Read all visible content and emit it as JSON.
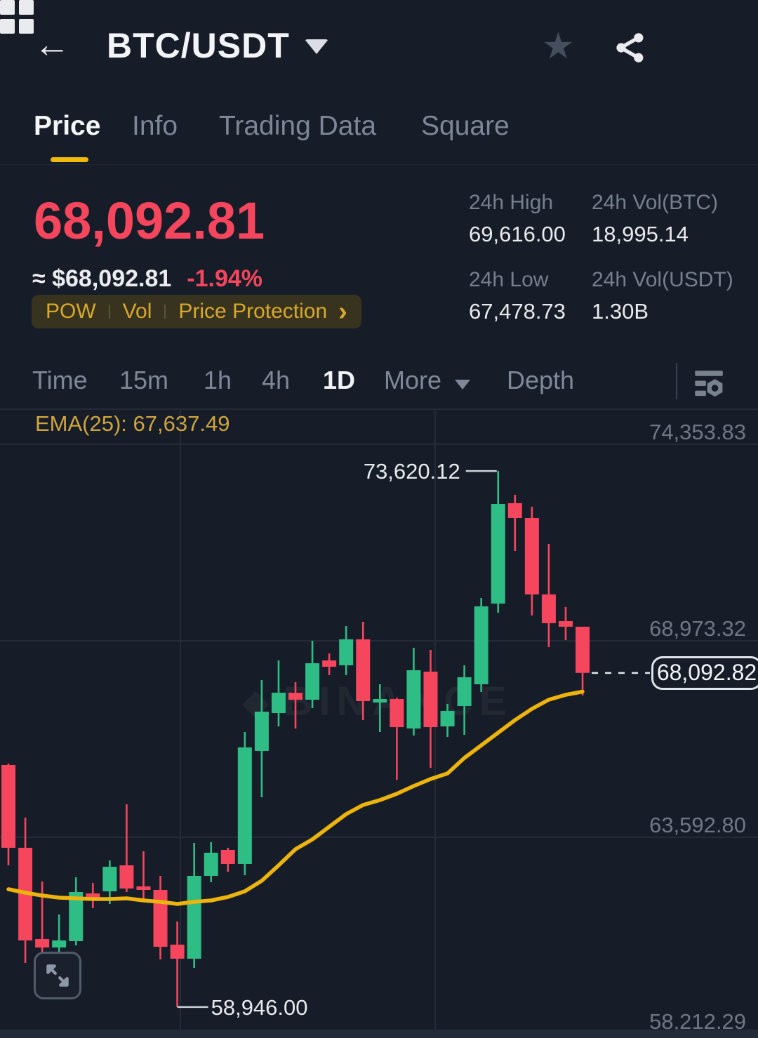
{
  "header": {
    "title": "BTC/USDT",
    "back_glyph": "←",
    "star_glyph": "★"
  },
  "tabs": [
    {
      "label": "Price",
      "active": true
    },
    {
      "label": "Info",
      "active": false
    },
    {
      "label": "Trading Data",
      "active": false
    },
    {
      "label": "Square",
      "active": false
    }
  ],
  "ticker": {
    "last_price": "68,092.81",
    "fiat_equiv": "≈ $68,092.81",
    "change_pct": "-1.94%",
    "tags": [
      "POW",
      "Vol",
      "Price Protection"
    ],
    "tags_chevron": "›"
  },
  "stats": [
    {
      "label": "24h High",
      "value": "69,616.00"
    },
    {
      "label": "24h Vol(BTC)",
      "value": "18,995.14"
    },
    {
      "label": "24h Low",
      "value": "67,478.73"
    },
    {
      "label": "24h Vol(USDT)",
      "value": "1.30B"
    }
  ],
  "intervals": {
    "items": [
      "Time",
      "15m",
      "1h",
      "4h",
      "1D",
      "More",
      "Depth"
    ],
    "selected": "1D"
  },
  "chart_data": {
    "type": "candlestick",
    "pair": "BTC/USDT",
    "timeframe": "1D",
    "ema_label": "EMA(25): 67,637.49",
    "ema_period": 25,
    "ema_value": 67637.49,
    "watermark": "BINANCE",
    "watermark_glyph": "◆",
    "axis": {
      "price_ticks": [
        74353.83,
        68973.32,
        63592.8,
        58212.29
      ],
      "tick_labels": [
        "74,353.83",
        "68,973.32",
        "63,592.80",
        "58,212.29"
      ],
      "grid_x": [
        257,
        620
      ]
    },
    "candles": [
      [
        65572,
        65611,
        62824,
        63305
      ],
      [
        63305,
        64131,
        60153,
        60768
      ],
      [
        60806,
        62382,
        60380,
        60576
      ],
      [
        60576,
        61479,
        60345,
        60768
      ],
      [
        60749,
        62498,
        60633,
        62094
      ],
      [
        62055,
        62344,
        61652,
        61863
      ],
      [
        62113,
        62959,
        61767,
        62786
      ],
      [
        62824,
        64496,
        62094,
        62190
      ],
      [
        62248,
        63209,
        61844,
        62152
      ],
      [
        62152,
        62536,
        60249,
        60595
      ],
      [
        60653,
        61287,
        58946,
        60268
      ],
      [
        60268,
        63439,
        60018,
        62536
      ],
      [
        62536,
        63458,
        62363,
        63170
      ],
      [
        63247,
        63304,
        62651,
        62863
      ],
      [
        62863,
        66475,
        62555,
        66053
      ],
      [
        65957,
        67897,
        64688,
        67032
      ],
      [
        66994,
        68435,
        66629,
        67551
      ],
      [
        67551,
        67840,
        66571,
        67359
      ],
      [
        67359,
        68973,
        67128,
        68358
      ],
      [
        68435,
        68627,
        68032,
        68262
      ],
      [
        68301,
        69377,
        68032,
        69012
      ],
      [
        69012,
        69492,
        66802,
        67321
      ],
      [
        67282,
        67782,
        66475,
        67378
      ],
      [
        67378,
        67417,
        65168,
        66609
      ],
      [
        66571,
        68781,
        66379,
        68166
      ],
      [
        68128,
        68723,
        65494,
        66609
      ],
      [
        66629,
        67244,
        66341,
        67052
      ],
      [
        67186,
        68301,
        66398,
        67974
      ],
      [
        67782,
        70146,
        67570,
        69915
      ],
      [
        69992,
        73620.12,
        69742,
        72720
      ],
      [
        72740,
        72970,
        71433,
        72336
      ],
      [
        72336,
        72643,
        69665,
        70242
      ],
      [
        70242,
        71625,
        68800,
        69454
      ],
      [
        69512,
        69896,
        68993,
        69358
      ],
      [
        69358,
        69358,
        67478.73,
        68092.82
      ]
    ],
    "ema": [
      62171,
      62075,
      61998,
      61940,
      61921,
      61902,
      61902,
      61921,
      61863,
      61825,
      61767,
      61825,
      61863,
      61959,
      62113,
      62401,
      62824,
      63266,
      63535,
      63881,
      64227,
      64477,
      64611,
      64784,
      64995,
      65187,
      65341,
      65764,
      66110,
      66456,
      66802,
      67109,
      67359,
      67494,
      67580
    ],
    "annotations": {
      "high": {
        "index": 29,
        "price": 73620.12,
        "label": "73,620.12"
      },
      "low": {
        "index": 10,
        "price": 58946.0,
        "label": "58,946.00"
      },
      "last": {
        "price": 68092.82,
        "label": "68,092.82"
      }
    },
    "colors": {
      "up": "#2ebd85",
      "down": "#f6465d",
      "ema": "#edb40e",
      "grid": "#242b38",
      "annotation": "#ccd2da",
      "accent": "#f0b90b"
    }
  }
}
